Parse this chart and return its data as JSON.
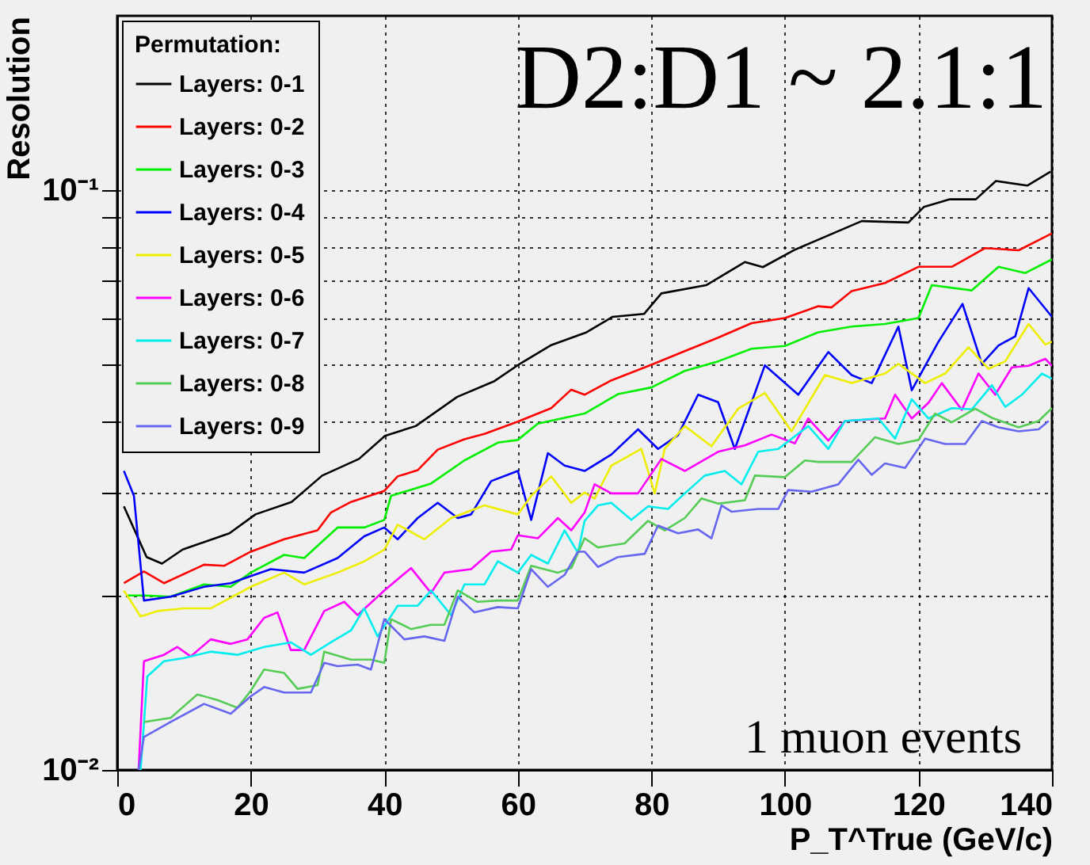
{
  "chart_data": {
    "type": "line",
    "xlabel": "P_T^True (GeV/c)",
    "ylabel": "Resolution",
    "legend_title": "Permutation:",
    "legend": "top left",
    "grid": true,
    "log": true,
    "line_style": "solid",
    "annotations": [
      "D2:D1 ~ 2.1:1",
      "1 muon events"
    ],
    "xlim": [
      0,
      140
    ],
    "xticks": [
      0,
      20,
      40,
      60,
      80,
      100,
      120,
      140
    ],
    "ylim": [
      0.01,
      0.2
    ],
    "yticks": [
      {
        "value": 0.01,
        "label": "10⁻²"
      },
      {
        "value": 0.02,
        "label": null
      },
      {
        "value": 0.03,
        "label": null
      },
      {
        "value": 0.04,
        "label": null
      },
      {
        "value": 0.05,
        "label": null
      },
      {
        "value": 0.06,
        "label": null
      },
      {
        "value": 0.07,
        "label": null
      },
      {
        "value": 0.08,
        "label": null
      },
      {
        "value": 0.09,
        "label": null
      },
      {
        "value": 0.1,
        "label": "10⁻¹"
      }
    ],
    "series": [
      {
        "name": "Layers: 0-1",
        "color": "#000000",
        "x": [
          1,
          4.4,
          6.7,
          9.8,
          16.8,
          20.7,
          26.1,
          30.7,
          36.2,
          40.1,
          44.7,
          50.9,
          56.4,
          60.3,
          64.9,
          70.3,
          74.2,
          78.9,
          81.5,
          88.2,
          94,
          96.7,
          101.4,
          111.5,
          118.5,
          120.8,
          124.7,
          128.6,
          131.6,
          136.3,
          139.8
        ],
        "values": [
          0.0285,
          0.0233,
          0.0227,
          0.024,
          0.0256,
          0.0276,
          0.029,
          0.0322,
          0.0344,
          0.0377,
          0.0392,
          0.044,
          0.0468,
          0.0502,
          0.054,
          0.0569,
          0.0605,
          0.0612,
          0.0664,
          0.0686,
          0.0752,
          0.0737,
          0.0789,
          0.0885,
          0.088,
          0.0936,
          0.0965,
          0.0965,
          0.1038,
          0.1019,
          0.1077
        ]
      },
      {
        "name": "Layers: 0-2",
        "color": "#ff0000",
        "x": [
          1,
          4,
          7,
          13,
          16,
          20,
          25,
          30,
          32,
          35,
          40,
          42,
          45,
          48,
          52,
          55,
          60,
          65,
          68,
          70,
          74,
          80,
          85,
          90,
          95,
          100,
          105,
          107,
          110,
          115,
          120,
          125,
          130,
          135,
          140
        ],
        "values": [
          0.021,
          0.022,
          0.021,
          0.0226,
          0.0225,
          0.0238,
          0.025,
          0.0259,
          0.0278,
          0.029,
          0.0303,
          0.0321,
          0.0329,
          0.0357,
          0.0372,
          0.038,
          0.0399,
          0.0421,
          0.0453,
          0.0444,
          0.047,
          0.05,
          0.0528,
          0.0557,
          0.059,
          0.0602,
          0.0631,
          0.0628,
          0.067,
          0.0692,
          0.0738,
          0.0738,
          0.0795,
          0.0788,
          0.0843
        ]
      },
      {
        "name": "Layers: 0-3",
        "color": "#00ee00",
        "x": [
          1.5,
          4,
          8,
          13,
          17,
          20,
          25,
          28,
          33,
          37,
          40,
          41,
          47,
          52,
          57,
          60,
          63,
          70,
          75,
          80,
          85,
          90,
          95,
          100,
          105,
          110,
          115,
          120,
          122,
          128,
          132,
          136,
          140
        ],
        "values": [
          0.02,
          0.02,
          0.0199,
          0.0209,
          0.0207,
          0.0219,
          0.0235,
          0.0232,
          0.0262,
          0.0262,
          0.027,
          0.0297,
          0.0312,
          0.0342,
          0.0367,
          0.0371,
          0.0396,
          0.0412,
          0.0445,
          0.0457,
          0.0488,
          0.0507,
          0.0533,
          0.0539,
          0.0569,
          0.0582,
          0.0588,
          0.0602,
          0.0686,
          0.0672,
          0.0738,
          0.072,
          0.076
        ]
      },
      {
        "name": "Layers: 0-4",
        "color": "#0000ff",
        "x": [
          1,
          2.5,
          4,
          8,
          13,
          17,
          20,
          23,
          28,
          33,
          37,
          40,
          42,
          45,
          48,
          51,
          53,
          56,
          60,
          62,
          64.5,
          67,
          70,
          74,
          78,
          81,
          84,
          87,
          90,
          92.5,
          97,
          102,
          106.5,
          110,
          113,
          117,
          119,
          123,
          126.6,
          129.5,
          132,
          134.5,
          136.5,
          140
        ],
        "values": [
          0.0328,
          0.0297,
          0.0196,
          0.0199,
          0.0207,
          0.021,
          0.0216,
          0.0222,
          0.0219,
          0.0232,
          0.0253,
          0.0262,
          0.025,
          0.0272,
          0.0289,
          0.0272,
          0.0276,
          0.0315,
          0.0328,
          0.027,
          0.0352,
          0.0335,
          0.0328,
          0.035,
          0.0387,
          0.0358,
          0.0378,
          0.0444,
          0.0431,
          0.0358,
          0.0499,
          0.0444,
          0.0526,
          0.048,
          0.0465,
          0.0582,
          0.0452,
          0.0548,
          0.0637,
          0.0502,
          0.054,
          0.056,
          0.0678,
          0.0605
        ]
      },
      {
        "name": "Layers: 0-5",
        "color": "#eeee00",
        "x": [
          1,
          3.5,
          6,
          10,
          14,
          20,
          25,
          28,
          33,
          37,
          40,
          42,
          46,
          50,
          55,
          60,
          62,
          65,
          68,
          70,
          71.5,
          74,
          78.5,
          80.5,
          82,
          85,
          89,
          93,
          97,
          101,
          106,
          110,
          115,
          117,
          121,
          124,
          127.5,
          130.5,
          133,
          136.5,
          139,
          140
        ],
        "values": [
          0.0204,
          0.0184,
          0.0188,
          0.019,
          0.019,
          0.0207,
          0.0219,
          0.0209,
          0.0219,
          0.0229,
          0.024,
          0.0265,
          0.025,
          0.0272,
          0.0286,
          0.0276,
          0.0297,
          0.0321,
          0.0289,
          0.0301,
          0.0294,
          0.0335,
          0.0358,
          0.03,
          0.0358,
          0.0392,
          0.0362,
          0.042,
          0.0447,
          0.0384,
          0.048,
          0.0465,
          0.0483,
          0.0502,
          0.0465,
          0.0483,
          0.0536,
          0.0492,
          0.0507,
          0.0588,
          0.0542,
          0.0548
        ]
      },
      {
        "name": "Layers: 0-6",
        "color": "#ff00ff",
        "x": [
          3.2,
          4,
          7,
          9,
          11,
          14,
          17,
          19.5,
          22,
          24,
          26,
          28,
          31,
          34,
          36,
          40,
          44,
          47,
          49,
          53,
          56,
          59,
          60,
          63,
          66,
          68,
          70,
          71.5,
          74,
          78,
          81.5,
          85,
          90,
          94,
          98,
          101.5,
          103.5,
          106.5,
          109,
          115,
          116.5,
          119,
          121.5,
          123.5,
          126.5,
          129,
          131.5,
          134,
          136.5,
          139,
          140
        ],
        "values": [
          0.01,
          0.0154,
          0.0158,
          0.0163,
          0.0157,
          0.0168,
          0.0165,
          0.0168,
          0.0183,
          0.0187,
          0.0161,
          0.0161,
          0.0188,
          0.0195,
          0.0185,
          0.0204,
          0.0223,
          0.0202,
          0.0219,
          0.0222,
          0.0238,
          0.024,
          0.0254,
          0.0251,
          0.0272,
          0.0259,
          0.0278,
          0.0311,
          0.03,
          0.03,
          0.0344,
          0.0328,
          0.0354,
          0.0363,
          0.0379,
          0.0366,
          0.0404,
          0.037,
          0.04,
          0.0404,
          0.0444,
          0.0404,
          0.043,
          0.0465,
          0.0418,
          0.0483,
          0.0444,
          0.0495,
          0.0498,
          0.0512,
          0.0498
        ]
      },
      {
        "name": "Layers: 0-7",
        "color": "#00eeee",
        "x": [
          3.5,
          4.5,
          7,
          10,
          14,
          18,
          22,
          26,
          29,
          32,
          35,
          37,
          39,
          42,
          45,
          47,
          50,
          52,
          55,
          57,
          60,
          62,
          64.5,
          67,
          69,
          70,
          72,
          74,
          77,
          79.5,
          82.5,
          85,
          88,
          91,
          93.5,
          96,
          99,
          103.5,
          106.5,
          109,
          114,
          116.5,
          119,
          121.5,
          125,
          128,
          131,
          133,
          135.5,
          138.5,
          140
        ],
        "values": [
          0.01,
          0.0145,
          0.0154,
          0.0156,
          0.016,
          0.0158,
          0.0163,
          0.0166,
          0.0158,
          0.0166,
          0.0174,
          0.019,
          0.017,
          0.0192,
          0.0192,
          0.0204,
          0.0185,
          0.0209,
          0.0209,
          0.0229,
          0.0219,
          0.0235,
          0.0227,
          0.0259,
          0.0237,
          0.0269,
          0.0286,
          0.0289,
          0.027,
          0.0285,
          0.0282,
          0.03,
          0.0322,
          0.0328,
          0.0311,
          0.0354,
          0.0358,
          0.0392,
          0.0358,
          0.04,
          0.0404,
          0.0373,
          0.0436,
          0.0404,
          0.0421,
          0.0419,
          0.0461,
          0.0423,
          0.0444,
          0.0483,
          0.0473
        ]
      },
      {
        "name": "Layers: 0-8",
        "color": "#55cc55",
        "x": [
          4,
          8,
          12,
          15,
          18,
          20,
          22,
          25,
          27,
          30,
          31,
          35,
          38,
          40,
          41,
          44,
          47,
          49,
          51,
          54,
          57,
          60,
          62,
          66,
          68,
          70,
          72,
          76,
          79.5,
          82,
          85,
          87.5,
          90,
          94,
          95.5,
          100,
          103,
          105,
          110,
          113.5,
          117,
          120,
          122.5,
          125,
          128.5,
          131,
          135,
          138,
          140
        ],
        "values": [
          0.0121,
          0.0123,
          0.0135,
          0.0132,
          0.0128,
          0.0137,
          0.0149,
          0.0147,
          0.0138,
          0.014,
          0.016,
          0.0155,
          0.0155,
          0.0153,
          0.0182,
          0.0175,
          0.0178,
          0.0178,
          0.0204,
          0.0195,
          0.0196,
          0.0196,
          0.0225,
          0.0219,
          0.0223,
          0.0251,
          0.0242,
          0.0246,
          0.0269,
          0.0259,
          0.0272,
          0.0294,
          0.0288,
          0.0292,
          0.0322,
          0.032,
          0.0342,
          0.034,
          0.034,
          0.0375,
          0.0365,
          0.0371,
          0.0412,
          0.0398,
          0.042,
          0.0405,
          0.039,
          0.04,
          0.0421
        ]
      },
      {
        "name": "Layers: 0-9",
        "color": "#6666ee",
        "x": [
          3.2,
          4,
          8,
          13,
          17,
          20,
          22,
          25,
          29,
          31,
          33,
          36,
          38,
          40,
          43,
          46,
          49,
          51,
          53.5,
          57,
          60,
          62,
          64.5,
          67,
          69,
          70,
          72,
          75,
          79,
          81,
          84,
          87,
          89,
          90.5,
          92,
          96,
          99,
          100.5,
          104,
          108,
          111,
          113,
          115,
          118,
          121,
          124,
          127,
          129.5,
          132,
          135,
          138,
          139.5
        ],
        "values": [
          0.01,
          0.0114,
          0.0121,
          0.013,
          0.0125,
          0.0134,
          0.0139,
          0.0136,
          0.0136,
          0.0153,
          0.0151,
          0.0152,
          0.0149,
          0.0182,
          0.0168,
          0.017,
          0.0167,
          0.0199,
          0.0187,
          0.0191,
          0.019,
          0.0222,
          0.0207,
          0.0217,
          0.0238,
          0.0238,
          0.0224,
          0.0233,
          0.0236,
          0.0264,
          0.0256,
          0.026,
          0.0251,
          0.0286,
          0.0279,
          0.0282,
          0.0282,
          0.0304,
          0.0302,
          0.0311,
          0.0343,
          0.0323,
          0.0338,
          0.0332,
          0.0373,
          0.0365,
          0.0365,
          0.04,
          0.039,
          0.0384,
          0.0387,
          0.04
        ]
      }
    ]
  }
}
